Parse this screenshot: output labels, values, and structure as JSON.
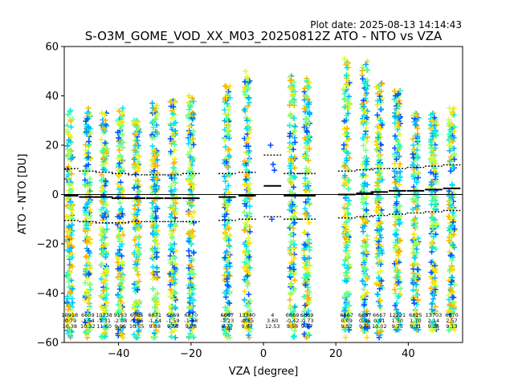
{
  "chart_data": {
    "type": "scatter",
    "title": "S-O3M_GOME_VOD_XX_M03_20250812Z ATO - NTO vs VZA",
    "plot_date": "Plot date: 2025-08-13 14:14:43",
    "xlabel": "VZA [degree]",
    "ylabel": "ATO - NTO [DU]",
    "xlim": [
      -55,
      55
    ],
    "ylim": [
      -60,
      60
    ],
    "xticks": [
      -40,
      -20,
      0,
      20,
      40
    ],
    "yticks": [
      -60,
      -40,
      -20,
      0,
      20,
      40,
      60
    ],
    "xtick_labels": [
      "−40",
      "−20",
      "0",
      "20",
      "40"
    ],
    "ytick_labels": [
      "−60",
      "−40",
      "−20",
      "0",
      "20",
      "40",
      "60"
    ],
    "grid": false,
    "zero_line": 0,
    "colors": {
      "scatter": [
        "#7fff7f",
        "#33ffa8",
        "#00e5ff",
        "#00b0ff",
        "#0055ff",
        "#d4ff33",
        "#ffe000",
        "#ffb400"
      ],
      "median": "#000000",
      "sigma": "#000000"
    },
    "bins": [
      {
        "vza": -53.5,
        "count": "10918",
        "mean": "-0.79",
        "sd": "10.38",
        "median": -0.5,
        "sigma_hi": 10.5,
        "sigma_lo": -10.5,
        "y_max": 34,
        "y_min": -58
      },
      {
        "vza": -48.5,
        "count": "6609",
        "mean": "-1.54",
        "sd": "10.32",
        "median": -1.0,
        "sigma_hi": 9.5,
        "sigma_lo": -11.0,
        "y_max": 35,
        "y_min": -58
      },
      {
        "vza": -44.0,
        "count": "10738",
        "mean": "-1.31",
        "sd": "11.60",
        "median": -1.0,
        "sigma_hi": 9.0,
        "sigma_lo": -11.5,
        "y_max": 33,
        "y_min": -58
      },
      {
        "vza": -39.5,
        "count": "9193",
        "mean": "-2.08",
        "sd": "9.96",
        "median": -1.5,
        "sigma_hi": 8.5,
        "sigma_lo": -11.5,
        "y_max": 35,
        "y_min": -58
      },
      {
        "vza": -35.0,
        "count": "6685",
        "mean": "-1.86",
        "sd": "10.05",
        "median": -1.5,
        "sigma_hi": 8.0,
        "sigma_lo": -11.0,
        "y_max": 30,
        "y_min": -58
      },
      {
        "vza": -30.0,
        "count": "6671",
        "mean": "-1.64",
        "sd": "9.88",
        "median": -1.5,
        "sigma_hi": 8.0,
        "sigma_lo": -11.0,
        "y_max": 37,
        "y_min": -58
      },
      {
        "vza": -25.0,
        "count": "6669",
        "mean": "-1.59",
        "sd": "9.58",
        "median": -1.5,
        "sigma_hi": 8.0,
        "sigma_lo": -11.0,
        "y_max": 38,
        "y_min": -58
      },
      {
        "vza": -20.0,
        "count": "6670",
        "mean": "-1.48",
        "sd": "9.78",
        "median": -1.5,
        "sigma_hi": 8.5,
        "sigma_lo": -11.0,
        "y_max": 40,
        "y_min": -58
      },
      {
        "vza": -10.0,
        "count": "6667",
        "mean": "-1.23",
        "sd": "8.77",
        "median": -1.0,
        "sigma_hi": 8.5,
        "sigma_lo": -10.5,
        "y_max": 44,
        "y_min": -58
      },
      {
        "vza": -4.5,
        "count": "13340",
        "mean": "-0.85",
        "sd": "9.67",
        "median": -0.5,
        "sigma_hi": 9.0,
        "sigma_lo": -10.0,
        "y_max": 50,
        "y_min": -58
      },
      {
        "vza": 2.5,
        "count": "4",
        "mean": "3.60",
        "sd": "12.53",
        "median": 3.5,
        "sigma_hi": 16.0,
        "sigma_lo": -9.0,
        "y_max": 20,
        "y_min": -10
      },
      {
        "vza": 8.0,
        "count": "6669",
        "mean": "-0.42",
        "sd": "9.55",
        "median": -0.5,
        "sigma_hi": 8.5,
        "sigma_lo": -10.0,
        "y_max": 48,
        "y_min": -58
      },
      {
        "vza": 12.0,
        "count": "6669",
        "mean": "-0.73",
        "sd": "9.57",
        "median": -0.5,
        "sigma_hi": 8.5,
        "sigma_lo": -10.0,
        "y_max": 47,
        "y_min": -58
      },
      {
        "vza": 23.0,
        "count": "6667",
        "mean": "0.09",
        "sd": "9.52",
        "median": 0.0,
        "sigma_hi": 9.5,
        "sigma_lo": -9.5,
        "y_max": 55,
        "y_min": -58
      },
      {
        "vza": 28.0,
        "count": "6667",
        "mean": "0.46",
        "sd": "9.54",
        "median": 0.5,
        "sigma_hi": 10.0,
        "sigma_lo": -9.0,
        "y_max": 54,
        "y_min": -58
      },
      {
        "vza": 32.0,
        "count": "6667",
        "mean": "0.91",
        "sd": "10.02",
        "median": 1.0,
        "sigma_hi": 10.5,
        "sigma_lo": -8.5,
        "y_max": 45,
        "y_min": -58
      },
      {
        "vza": 37.0,
        "count": "12221",
        "mean": "1.30",
        "sd": "9.75",
        "median": 1.5,
        "sigma_hi": 10.5,
        "sigma_lo": -8.0,
        "y_max": 42,
        "y_min": -55
      },
      {
        "vza": 42.0,
        "count": "6825",
        "mean": "1.70",
        "sd": "9.31",
        "median": 1.5,
        "sigma_hi": 11.0,
        "sigma_lo": -7.5,
        "y_max": 33,
        "y_min": -55
      },
      {
        "vza": 47.0,
        "count": "13703",
        "mean": "2.14",
        "sd": "9.25",
        "median": 2.0,
        "sigma_hi": 11.5,
        "sigma_lo": -7.0,
        "y_max": 33,
        "y_min": -55
      },
      {
        "vza": 52.0,
        "count": "6670",
        "mean": "2.57",
        "sd": "9.13",
        "median": 2.5,
        "sigma_hi": 12.0,
        "sigma_lo": -6.5,
        "y_max": 35,
        "y_min": -55
      }
    ]
  }
}
